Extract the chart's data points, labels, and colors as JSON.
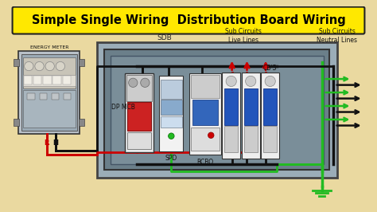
{
  "title": "Simple Single Wiring  Distribution Board Wiring",
  "title_bg": "#FFE800",
  "title_fg": "#000000",
  "bg_color": "#EAD9A0",
  "fig_bg": "#1a1a1a",
  "sdb_label": "SDB",
  "energy_meter_label": "ENERGY METER",
  "sub_circuits_live": "Sub Circuits\nLive Lines",
  "sub_circuits_neutral": "Sub Circuits\nNeutral Lines",
  "dp_mcb_label": "DP MCB",
  "spd_label": "SPD",
  "rcbo_label": "RCBO",
  "cbs_label": "CB'S",
  "r_label": "R",
  "n_label": "N",
  "wire_red": "#CC0000",
  "wire_black": "#111111",
  "wire_green": "#22BB22",
  "sdb_outer_color": "#9BADB8",
  "sdb_inner_color": "#6B7F8A",
  "meter_color": "#9BADB8"
}
